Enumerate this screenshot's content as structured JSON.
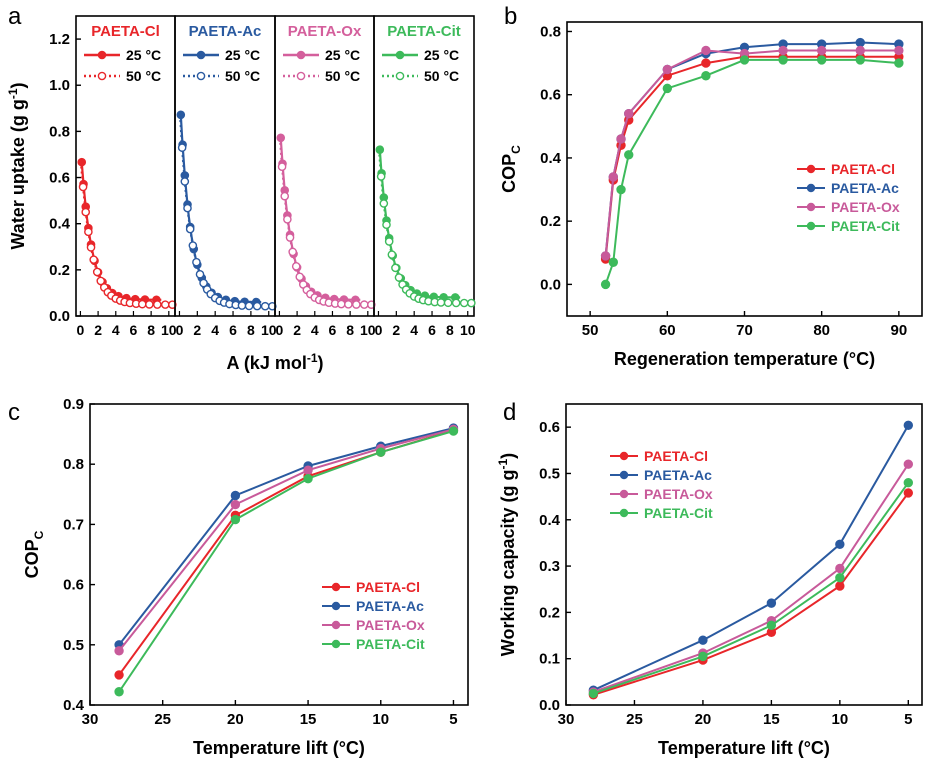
{
  "chart_data": [
    {
      "panel": "a",
      "type": "line",
      "ylabel": "Water uptake (g g",
      "ylabel_sup": "-1",
      "ylabel_end": ")",
      "xlabel": "A  (kJ mol",
      "xlabel_sup": "-1",
      "xlabel_end": ")",
      "ylim": [
        0,
        1.3
      ],
      "yticks": [
        "0.0",
        "0.2",
        "0.4",
        "0.6",
        "0.8",
        "1.0",
        "1.2"
      ],
      "xlim": [
        -0.5,
        10.7
      ],
      "xticks": [
        "0",
        "2",
        "4",
        "6",
        "8",
        "10"
      ],
      "legend_25": "25 °C",
      "legend_50": "50 °C",
      "subpanels": [
        {
          "name": "PAETA-Cl",
          "color": "#e8262a",
          "y0": 0.75,
          "tail": 0.07
        },
        {
          "name": "PAETA-Ac",
          "color": "#2a5aa0",
          "y0": 0.985,
          "tail": 0.06
        },
        {
          "name": "PAETA-Ox",
          "color": "#d45f9c",
          "y0": 0.87,
          "tail": 0.07
        },
        {
          "name": "PAETA-Cit",
          "color": "#3dba5b",
          "y0": 0.81,
          "tail": 0.08
        }
      ]
    },
    {
      "panel": "b",
      "type": "line",
      "xlabel": "Regeneration temperature (°C)",
      "ylabel": "COP",
      "ylabel_sub": "C",
      "xlim": [
        47,
        93
      ],
      "ylim": [
        -0.1,
        0.83
      ],
      "xticks": [
        "50",
        "60",
        "70",
        "80",
        "90"
      ],
      "yticks": [
        "0.0",
        "0.2",
        "0.4",
        "0.6",
        "0.8"
      ],
      "legend_position": "right",
      "x": [
        52,
        53,
        54,
        55,
        60,
        65,
        70,
        75,
        80,
        85,
        90
      ],
      "series": [
        {
          "name": "PAETA-Cl",
          "color": "#e8262a",
          "values": [
            0.08,
            0.33,
            0.44,
            0.52,
            0.66,
            0.7,
            0.72,
            0.72,
            0.72,
            0.72,
            0.72
          ]
        },
        {
          "name": "PAETA-Ac",
          "color": "#2a5aa0",
          "values": [
            0.09,
            0.34,
            0.46,
            0.54,
            0.68,
            0.73,
            0.75,
            0.76,
            0.76,
            0.765,
            0.76
          ]
        },
        {
          "name": "PAETA-Ox",
          "color": "#c85a9a",
          "values": [
            0.09,
            0.34,
            0.46,
            0.54,
            0.68,
            0.74,
            0.73,
            0.74,
            0.74,
            0.74,
            0.74
          ]
        },
        {
          "name": "PAETA-Cit",
          "color": "#3dba5b",
          "values": [
            0.0,
            0.07,
            0.3,
            0.41,
            0.62,
            0.66,
            0.71,
            0.71,
            0.71,
            0.71,
            0.7
          ]
        }
      ]
    },
    {
      "panel": "c",
      "type": "line",
      "xlabel": "Temperature lift (°C)",
      "ylabel": "COP",
      "ylabel_sub": "C",
      "xlim": [
        30,
        4
      ],
      "ylim": [
        0.4,
        0.9
      ],
      "xticks": [
        "30",
        "25",
        "20",
        "15",
        "10",
        "5"
      ],
      "yticks": [
        "0.4",
        "0.5",
        "0.6",
        "0.7",
        "0.8",
        "0.9"
      ],
      "legend_position": "lower right",
      "x": [
        28,
        20,
        15,
        10,
        5
      ],
      "series": [
        {
          "name": "PAETA-Cl",
          "color": "#e8262a",
          "values": [
            0.45,
            0.715,
            0.78,
            0.82,
            0.856
          ]
        },
        {
          "name": "PAETA-Ac",
          "color": "#2a5aa0",
          "values": [
            0.5,
            0.748,
            0.797,
            0.83,
            0.86
          ]
        },
        {
          "name": "PAETA-Ox",
          "color": "#c85a9a",
          "values": [
            0.49,
            0.733,
            0.79,
            0.826,
            0.858
          ]
        },
        {
          "name": "PAETA-Cit",
          "color": "#3dba5b",
          "values": [
            0.422,
            0.708,
            0.776,
            0.82,
            0.855
          ]
        }
      ]
    },
    {
      "panel": "d",
      "type": "line",
      "xlabel": "Temperature lift (°C)",
      "ylabel": "Working capacity (g g",
      "ylabel_sup": "-1",
      "ylabel_end": ")",
      "xlim": [
        30,
        4
      ],
      "ylim": [
        0,
        0.65
      ],
      "xticks": [
        "30",
        "25",
        "20",
        "15",
        "10",
        "5"
      ],
      "yticks": [
        "0.0",
        "0.1",
        "0.2",
        "0.3",
        "0.4",
        "0.5",
        "0.6"
      ],
      "legend_position": "upper left",
      "x": [
        28,
        20,
        15,
        10,
        5
      ],
      "series": [
        {
          "name": "PAETA-Cl",
          "color": "#e8262a",
          "values": [
            0.022,
            0.097,
            0.157,
            0.257,
            0.458
          ]
        },
        {
          "name": "PAETA-Ac",
          "color": "#2a5aa0",
          "values": [
            0.032,
            0.14,
            0.22,
            0.347,
            0.604
          ]
        },
        {
          "name": "PAETA-Ox",
          "color": "#c85a9a",
          "values": [
            0.028,
            0.112,
            0.182,
            0.295,
            0.52
          ]
        },
        {
          "name": "PAETA-Cit",
          "color": "#3dba5b",
          "values": [
            0.025,
            0.105,
            0.172,
            0.275,
            0.48
          ]
        }
      ]
    }
  ]
}
